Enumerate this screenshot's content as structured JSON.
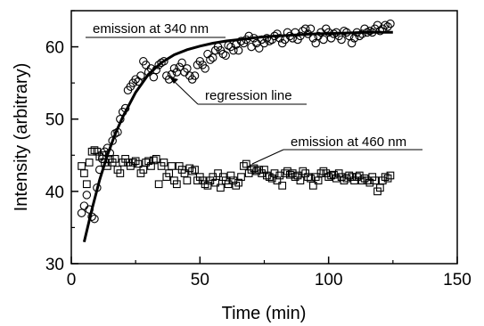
{
  "chart_data": {
    "type": "scatter",
    "xlabel": "Time (min)",
    "ylabel": "Intensity (arbitrary)",
    "xlim": [
      0,
      150
    ],
    "ylim": [
      30,
      65
    ],
    "xticks": [
      0,
      50,
      100,
      150
    ],
    "yticks": [
      30,
      40,
      50,
      60
    ],
    "grid": false,
    "annotations": [
      {
        "text": "emission at 340 nm"
      },
      {
        "text": "regression line"
      },
      {
        "text": "emission at 460 nm"
      }
    ],
    "series": [
      {
        "marker": "circle",
        "x": [
          4,
          5,
          6,
          7,
          8,
          9,
          10,
          11,
          12,
          13,
          14,
          15,
          16,
          17,
          18,
          19,
          20,
          21,
          22,
          23,
          24,
          25,
          26,
          27,
          28,
          29,
          30,
          31,
          32,
          33,
          34,
          35,
          36,
          37,
          38,
          39,
          40,
          41,
          42,
          43,
          44,
          45,
          46,
          47,
          48,
          49,
          50,
          51,
          52,
          53,
          54,
          55,
          56,
          57,
          58,
          59,
          60,
          61,
          62,
          63,
          64,
          65,
          66,
          67,
          68,
          69,
          70,
          71,
          72,
          73,
          74,
          75,
          76,
          77,
          78,
          79,
          80,
          81,
          82,
          83,
          84,
          85,
          86,
          87,
          88,
          89,
          90,
          91,
          92,
          93,
          94,
          95,
          96,
          97,
          98,
          99,
          100,
          101,
          102,
          103,
          104,
          105,
          106,
          107,
          108,
          109,
          110,
          111,
          112,
          113,
          114,
          115,
          116,
          117,
          118,
          119,
          120,
          121,
          122,
          123,
          124
        ],
        "values": [
          37,
          38,
          39.5,
          37.5,
          36.5,
          36.2,
          40.5,
          43,
          44.5,
          45.5,
          46,
          45.3,
          47,
          48,
          48.2,
          50,
          51,
          51.5,
          54,
          54.5,
          55,
          55.5,
          55.2,
          56,
          58,
          57.5,
          56.5,
          57,
          55.8,
          56.8,
          57.5,
          57.8,
          58,
          56,
          55.5,
          56.2,
          57,
          56.5,
          57.2,
          57.8,
          56.5,
          57,
          56,
          55.5,
          56,
          57.5,
          58,
          57.5,
          57,
          59,
          58.2,
          58.5,
          59.5,
          60,
          59.5,
          59,
          58.8,
          60.2,
          60,
          59.5,
          60.3,
          59.5,
          60.8,
          60.5,
          61,
          61.5,
          60,
          61.2,
          60.5,
          59.8,
          61,
          60.5,
          61.2,
          60.8,
          61,
          61.5,
          61.8,
          61.2,
          60.5,
          61,
          62,
          61.5,
          61.2,
          62,
          61,
          61.5,
          62.2,
          62.5,
          61.8,
          62.5,
          61.2,
          60.5,
          61.5,
          62,
          61,
          62.5,
          62,
          61.2,
          61.8,
          62,
          61.5,
          61,
          62.2,
          62,
          61.5,
          60.5,
          61.2,
          62,
          61.5,
          61.8,
          62.5,
          62,
          62.2,
          62,
          62.5,
          63,
          62.2,
          62.5,
          63,
          62.8,
          63.2
        ]
      },
      {
        "marker": "square",
        "x": [
          4,
          5,
          6,
          7,
          8,
          9,
          10,
          11,
          12,
          13,
          14,
          15,
          16,
          17,
          18,
          19,
          20,
          21,
          22,
          23,
          24,
          25,
          26,
          27,
          28,
          29,
          30,
          31,
          32,
          33,
          34,
          35,
          36,
          37,
          38,
          39,
          40,
          41,
          42,
          43,
          44,
          45,
          46,
          47,
          48,
          49,
          50,
          51,
          52,
          53,
          54,
          55,
          56,
          57,
          58,
          59,
          60,
          61,
          62,
          63,
          64,
          65,
          66,
          67,
          68,
          69,
          70,
          71,
          72,
          73,
          74,
          75,
          76,
          77,
          78,
          79,
          80,
          81,
          82,
          83,
          84,
          85,
          86,
          87,
          88,
          89,
          90,
          91,
          92,
          93,
          94,
          95,
          96,
          97,
          98,
          99,
          100,
          101,
          102,
          103,
          104,
          105,
          106,
          107,
          108,
          109,
          110,
          111,
          112,
          113,
          114,
          115,
          116,
          117,
          118,
          119,
          120,
          121,
          122,
          123,
          124
        ],
        "values": [
          43.5,
          42.5,
          41,
          44,
          45.5,
          45.7,
          45.5,
          44.8,
          45,
          44,
          43.5,
          44.5,
          44,
          44.5,
          43,
          42.5,
          44,
          44.5,
          44,
          43.5,
          44,
          44.2,
          43.8,
          42.5,
          43,
          44,
          44.2,
          43.5,
          44.3,
          44.5,
          41,
          43.5,
          44,
          42,
          42.5,
          43.5,
          41.5,
          41,
          43.5,
          43,
          42.5,
          41.5,
          43.2,
          42.8,
          43,
          41.5,
          42,
          41.5,
          41,
          40.8,
          41.5,
          42,
          41.2,
          42.5,
          40.5,
          42,
          41.5,
          41,
          42.2,
          41.5,
          40.8,
          41.2,
          42,
          43.5,
          43.8,
          42.5,
          43,
          43.2,
          42.8,
          43,
          42.5,
          43,
          42.2,
          42,
          41.8,
          42.5,
          41.5,
          42.2,
          40.8,
          42.5,
          42.8,
          42.3,
          42.5,
          42,
          42.2,
          41.5,
          42.8,
          42.5,
          42,
          41.8,
          40.8,
          42,
          41.5,
          42.5,
          42.8,
          42.5,
          42,
          42.2,
          42.3,
          41.8,
          42.5,
          42,
          41.5,
          41.8,
          42.2,
          42,
          41.5,
          42,
          42.2,
          41.5,
          41.8,
          41.5,
          41.2,
          42,
          41.5,
          40,
          40.5,
          41.5,
          42,
          41.8,
          42.2
        ]
      }
    ],
    "regression": {
      "x": [
        5,
        8,
        11,
        14,
        17,
        20,
        25,
        30,
        35,
        40,
        45,
        50,
        55,
        60,
        65,
        70,
        75,
        80,
        85,
        90,
        95,
        100,
        105,
        110,
        115,
        120,
        125
      ],
      "values": [
        33,
        37.5,
        41.6,
        45,
        47.9,
        50.3,
        53.7,
        56.2,
        57.8,
        58.9,
        59.6,
        60.1,
        60.5,
        60.8,
        61,
        61.2,
        61.4,
        61.5,
        61.6,
        61.7,
        61.8,
        61.85,
        61.9,
        61.95,
        62,
        62,
        62
      ]
    }
  }
}
